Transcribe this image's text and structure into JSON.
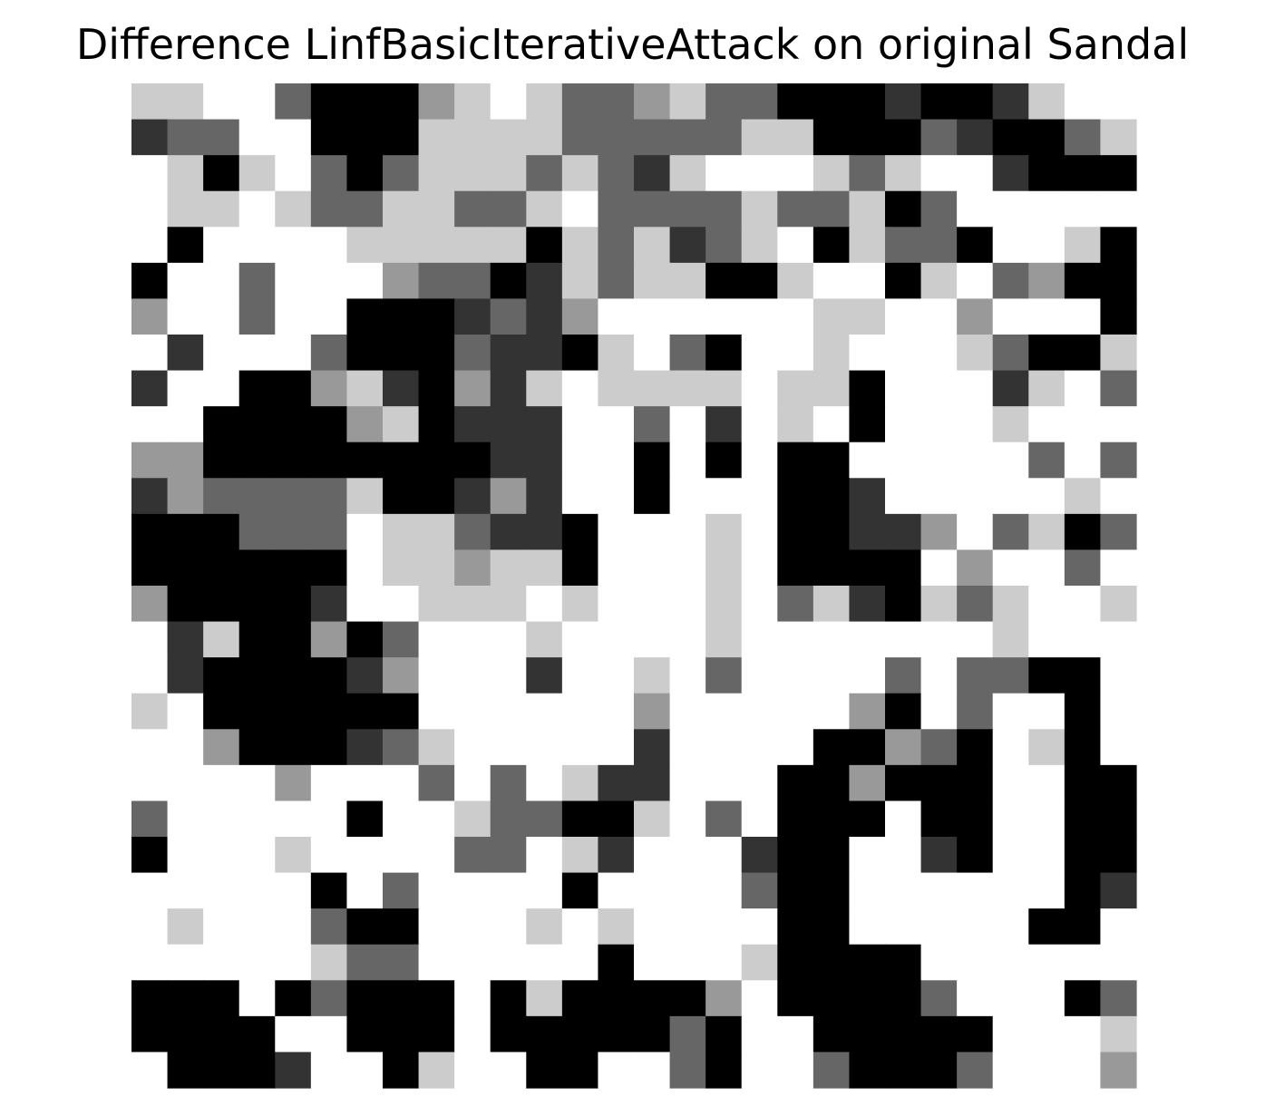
{
  "chart_data": {
    "type": "heatmap",
    "title": "Difference LinfBasicIterativeAttack on original Sandal",
    "colormap": "gray",
    "value_range": [
      0,
      5
    ],
    "axes_visible": false,
    "grid": false,
    "rows": 28,
    "cols": 28,
    "levels": [
      "#ffffff",
      "#cccccc",
      "#999999",
      "#666666",
      "#333333",
      "#000000"
    ],
    "values": [
      [
        1,
        1,
        0,
        0,
        3,
        5,
        5,
        5,
        2,
        1,
        0,
        1,
        3,
        3,
        2,
        1,
        3,
        3,
        5,
        5,
        5,
        4,
        5,
        5,
        4,
        1,
        0,
        0
      ],
      [
        4,
        3,
        3,
        0,
        0,
        5,
        5,
        5,
        1,
        1,
        1,
        1,
        3,
        3,
        3,
        3,
        3,
        1,
        1,
        5,
        5,
        5,
        3,
        4,
        5,
        5,
        3,
        1
      ],
      [
        0,
        1,
        5,
        1,
        0,
        3,
        5,
        3,
        1,
        1,
        1,
        3,
        1,
        3,
        4,
        1,
        0,
        0,
        0,
        1,
        3,
        1,
        0,
        0,
        4,
        5,
        5,
        5
      ],
      [
        0,
        1,
        1,
        0,
        1,
        3,
        3,
        1,
        1,
        3,
        3,
        1,
        0,
        3,
        3,
        3,
        3,
        1,
        3,
        3,
        1,
        5,
        3,
        0,
        0,
        0,
        0,
        0
      ],
      [
        0,
        5,
        0,
        0,
        0,
        0,
        1,
        1,
        1,
        1,
        1,
        5,
        1,
        3,
        1,
        4,
        3,
        1,
        0,
        5,
        1,
        3,
        3,
        5,
        0,
        0,
        1,
        5
      ],
      [
        5,
        0,
        0,
        3,
        0,
        0,
        0,
        2,
        3,
        3,
        5,
        4,
        1,
        3,
        1,
        1,
        5,
        5,
        1,
        0,
        0,
        5,
        1,
        0,
        3,
        2,
        5,
        5
      ],
      [
        2,
        0,
        0,
        3,
        0,
        0,
        5,
        5,
        5,
        4,
        3,
        4,
        2,
        0,
        0,
        0,
        0,
        0,
        0,
        1,
        1,
        0,
        0,
        2,
        0,
        0,
        0,
        5
      ],
      [
        0,
        4,
        0,
        0,
        0,
        3,
        5,
        5,
        5,
        3,
        4,
        4,
        5,
        1,
        0,
        3,
        5,
        0,
        0,
        1,
        0,
        0,
        0,
        1,
        3,
        5,
        5,
        1
      ],
      [
        4,
        0,
        0,
        5,
        5,
        2,
        1,
        4,
        5,
        2,
        4,
        1,
        0,
        1,
        1,
        1,
        1,
        0,
        1,
        1,
        5,
        0,
        0,
        0,
        4,
        1,
        0,
        3
      ],
      [
        0,
        0,
        5,
        5,
        5,
        5,
        2,
        1,
        5,
        4,
        4,
        4,
        0,
        0,
        3,
        0,
        4,
        0,
        1,
        0,
        5,
        0,
        0,
        0,
        1,
        0,
        0,
        0
      ],
      [
        2,
        2,
        5,
        5,
        5,
        5,
        5,
        5,
        5,
        5,
        4,
        4,
        0,
        0,
        5,
        0,
        5,
        0,
        5,
        5,
        0,
        0,
        0,
        0,
        0,
        3,
        0,
        3
      ],
      [
        4,
        2,
        3,
        3,
        3,
        3,
        1,
        5,
        5,
        4,
        2,
        4,
        0,
        0,
        5,
        0,
        0,
        0,
        5,
        5,
        4,
        0,
        0,
        0,
        0,
        0,
        1,
        0
      ],
      [
        5,
        5,
        5,
        3,
        3,
        3,
        0,
        1,
        1,
        3,
        4,
        4,
        5,
        0,
        0,
        0,
        1,
        0,
        5,
        5,
        4,
        4,
        2,
        0,
        3,
        1,
        5,
        3
      ],
      [
        5,
        5,
        5,
        5,
        5,
        5,
        0,
        1,
        1,
        2,
        1,
        1,
        5,
        0,
        0,
        0,
        1,
        0,
        5,
        5,
        5,
        5,
        0,
        2,
        0,
        0,
        3,
        0
      ],
      [
        2,
        5,
        5,
        5,
        5,
        4,
        0,
        0,
        1,
        1,
        1,
        0,
        1,
        0,
        0,
        0,
        1,
        0,
        3,
        1,
        4,
        5,
        1,
        3,
        1,
        0,
        0,
        1
      ],
      [
        0,
        4,
        1,
        5,
        5,
        2,
        5,
        3,
        0,
        0,
        0,
        1,
        0,
        0,
        0,
        0,
        1,
        0,
        0,
        0,
        0,
        0,
        0,
        0,
        1,
        0,
        0,
        0
      ],
      [
        0,
        4,
        5,
        5,
        5,
        5,
        4,
        2,
        0,
        0,
        0,
        4,
        0,
        0,
        1,
        0,
        3,
        0,
        0,
        0,
        0,
        3,
        0,
        3,
        3,
        5,
        5,
        0
      ],
      [
        1,
        0,
        5,
        5,
        5,
        5,
        5,
        5,
        0,
        0,
        0,
        0,
        0,
        0,
        2,
        0,
        0,
        0,
        0,
        0,
        2,
        5,
        0,
        3,
        0,
        0,
        5,
        0
      ],
      [
        0,
        0,
        2,
        5,
        5,
        5,
        4,
        3,
        1,
        0,
        0,
        0,
        0,
        0,
        4,
        0,
        0,
        0,
        0,
        5,
        5,
        2,
        3,
        5,
        0,
        1,
        5,
        0
      ],
      [
        0,
        0,
        0,
        0,
        2,
        0,
        0,
        0,
        3,
        0,
        3,
        0,
        1,
        4,
        4,
        0,
        0,
        0,
        5,
        5,
        2,
        5,
        5,
        5,
        0,
        0,
        5,
        5
      ],
      [
        3,
        0,
        0,
        0,
        0,
        0,
        5,
        0,
        0,
        1,
        3,
        3,
        5,
        5,
        1,
        0,
        3,
        0,
        5,
        5,
        5,
        0,
        5,
        5,
        0,
        0,
        5,
        5
      ],
      [
        5,
        0,
        0,
        0,
        1,
        0,
        0,
        0,
        0,
        3,
        3,
        0,
        1,
        4,
        0,
        0,
        0,
        4,
        5,
        5,
        0,
        0,
        4,
        5,
        0,
        0,
        5,
        5
      ],
      [
        0,
        0,
        0,
        0,
        0,
        5,
        0,
        3,
        0,
        0,
        0,
        0,
        5,
        0,
        0,
        0,
        0,
        3,
        5,
        5,
        0,
        0,
        0,
        0,
        0,
        0,
        5,
        4
      ],
      [
        0,
        1,
        0,
        0,
        0,
        3,
        5,
        5,
        0,
        0,
        0,
        1,
        0,
        1,
        0,
        0,
        0,
        0,
        5,
        5,
        0,
        0,
        0,
        0,
        0,
        5,
        5,
        0
      ],
      [
        0,
        0,
        0,
        0,
        0,
        1,
        3,
        3,
        0,
        0,
        0,
        0,
        0,
        5,
        0,
        0,
        0,
        1,
        5,
        5,
        5,
        5,
        0,
        0,
        0,
        0,
        0,
        0
      ],
      [
        5,
        5,
        5,
        0,
        5,
        3,
        5,
        5,
        5,
        0,
        5,
        1,
        5,
        5,
        5,
        5,
        2,
        0,
        5,
        5,
        5,
        5,
        3,
        0,
        0,
        0,
        5,
        3
      ],
      [
        5,
        5,
        5,
        5,
        0,
        0,
        5,
        5,
        5,
        0,
        5,
        5,
        5,
        5,
        5,
        3,
        5,
        0,
        0,
        5,
        5,
        5,
        5,
        5,
        0,
        0,
        0,
        1
      ],
      [
        0,
        5,
        5,
        5,
        4,
        0,
        0,
        5,
        1,
        0,
        0,
        5,
        5,
        0,
        0,
        3,
        5,
        0,
        0,
        3,
        5,
        5,
        5,
        3,
        0,
        0,
        0,
        2
      ]
    ]
  }
}
